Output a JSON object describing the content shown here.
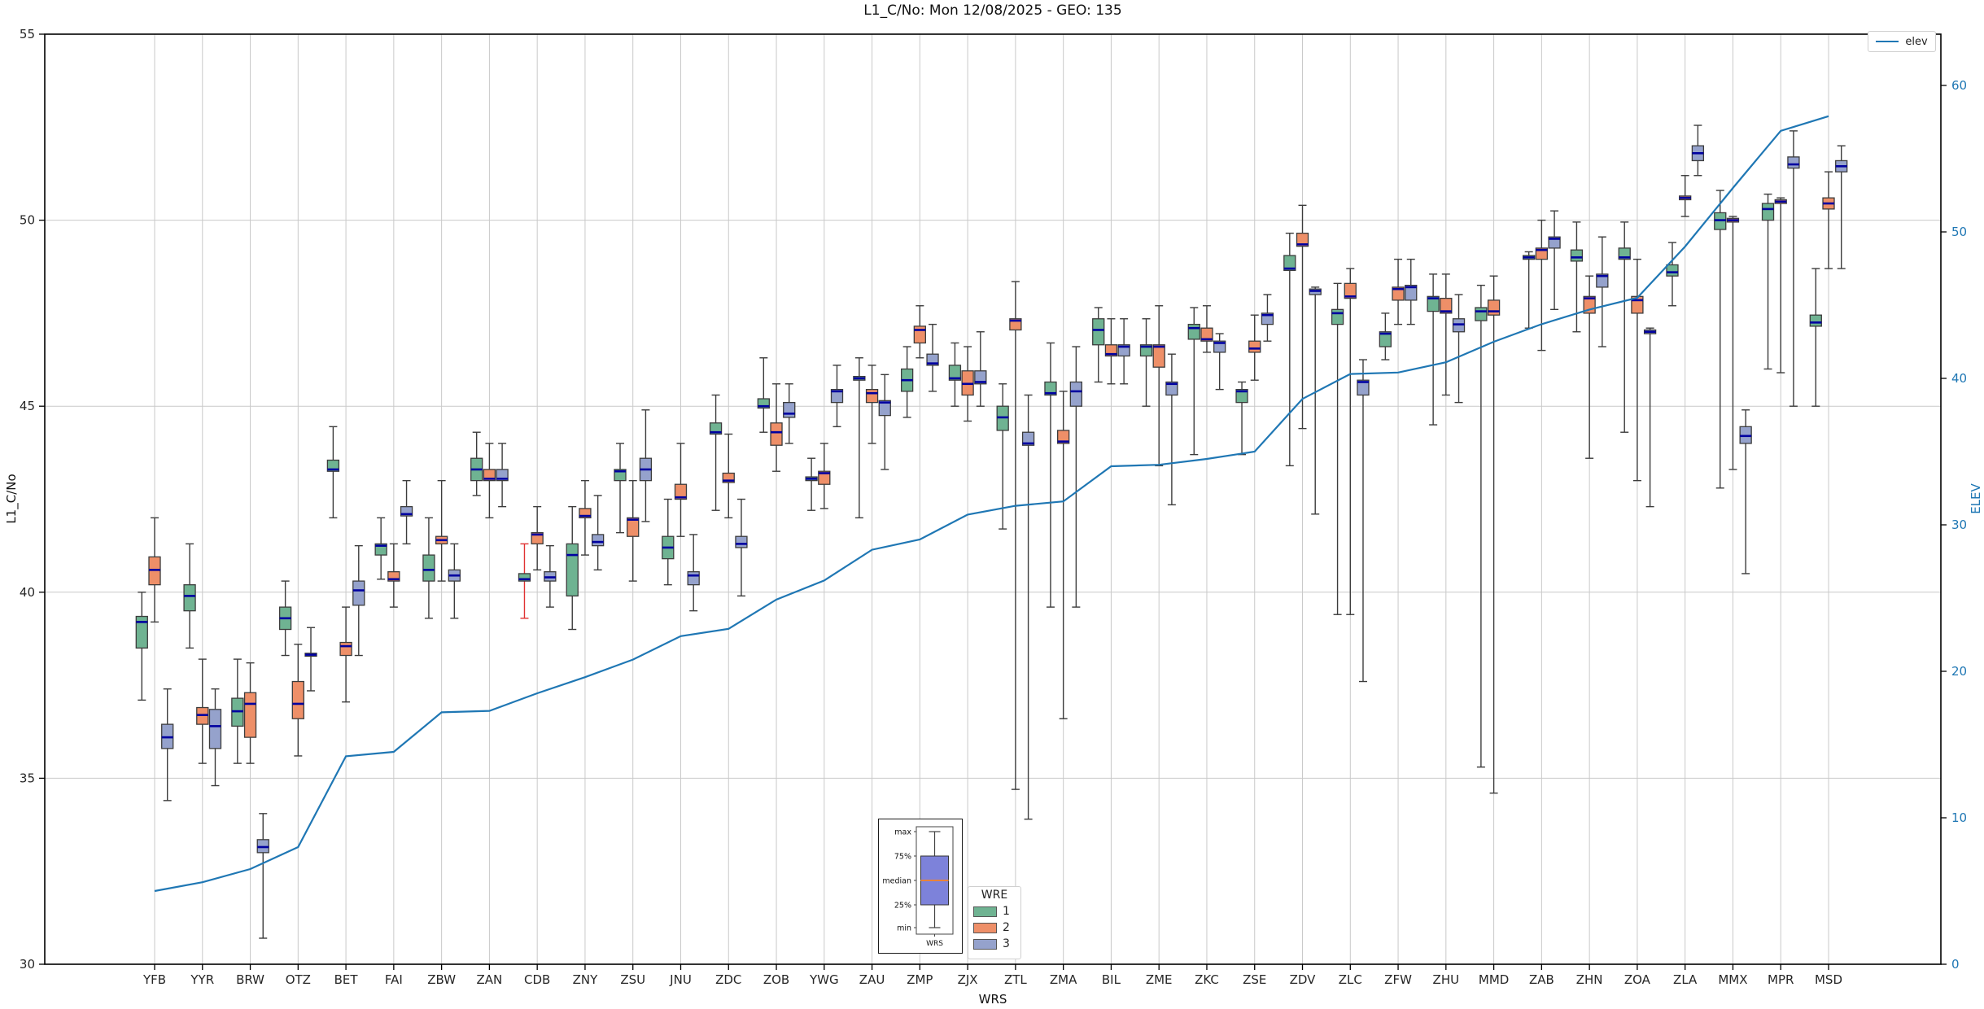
{
  "title": "L1_C/No: Mon 12/08/2025 - GEO: 135",
  "axes": {
    "left": {
      "label": "L1_C/No",
      "ticks": [
        30,
        35,
        40,
        45,
        50,
        55
      ],
      "color": "#262626"
    },
    "right": {
      "label": "ELEV",
      "ticks": [
        0,
        10,
        20,
        30,
        40,
        50,
        60
      ],
      "color": "#1f77b4"
    },
    "x": {
      "label": "WRS"
    }
  },
  "legend_elev": {
    "label": "elev",
    "color": "#1f77b4"
  },
  "legend_wre": {
    "title": "WRE",
    "entries": [
      {
        "label": "1",
        "color": "#6fb392"
      },
      {
        "label": "2",
        "color": "#ee8f68"
      },
      {
        "label": "3",
        "color": "#95a2cc"
      }
    ]
  },
  "inset": {
    "labels": {
      "max": "max",
      "p75": "75%",
      "median": "median",
      "p25": "25%",
      "min": "min",
      "xlabel": "WRS"
    },
    "box_color": "#7d82da",
    "median_color": "#e8833c"
  },
  "chart_data": {
    "type": "boxplot+line",
    "title": "L1_C/No: Mon 12/08/2025 - GEO: 135",
    "xlabel": "WRS",
    "ylabel_left": "L1_C/No",
    "ylabel_right": "ELEV",
    "ylim_left": [
      30,
      55
    ],
    "ylim_right": [
      0,
      63.5
    ],
    "grid": true,
    "categories": [
      "YFB",
      "YYR",
      "BRW",
      "OTZ",
      "BET",
      "FAI",
      "ZBW",
      "ZAN",
      "CDB",
      "ZNY",
      "ZSU",
      "JNU",
      "ZDC",
      "ZOB",
      "YWG",
      "ZAU",
      "ZMP",
      "ZJX",
      "ZTL",
      "ZMA",
      "BIL",
      "ZME",
      "ZKC",
      "ZSE",
      "ZDV",
      "ZLC",
      "ZFW",
      "ZHU",
      "MMD",
      "ZAB",
      "ZHN",
      "ZOA",
      "ZLA",
      "MMX",
      "MPR",
      "MSD"
    ],
    "box_value_order": [
      "whisker_low",
      "q1",
      "median",
      "q3",
      "whisker_high"
    ],
    "series": [
      {
        "name": "1",
        "color": "#6fb392",
        "values": [
          [
            37.1,
            38.5,
            39.2,
            39.35,
            40.0
          ],
          [
            38.5,
            39.5,
            39.9,
            40.2,
            41.3
          ],
          [
            35.4,
            36.4,
            36.8,
            37.15,
            38.2
          ],
          [
            38.3,
            39.0,
            39.3,
            39.6,
            40.3
          ],
          [
            42.0,
            43.25,
            43.3,
            43.55,
            44.45
          ],
          [
            40.35,
            41.0,
            41.25,
            41.3,
            42.0
          ],
          [
            39.3,
            40.3,
            40.6,
            41.0,
            42.0
          ],
          [
            42.6,
            43.0,
            43.3,
            43.6,
            44.3
          ],
          [
            39.3,
            40.3,
            40.35,
            40.5,
            41.3
          ],
          [
            39.0,
            39.9,
            41.0,
            41.3,
            42.3
          ],
          [
            41.6,
            43.0,
            43.25,
            43.3,
            44.0
          ],
          [
            40.2,
            40.9,
            41.2,
            41.5,
            42.5
          ],
          [
            42.2,
            44.25,
            44.3,
            44.55,
            45.3
          ],
          [
            44.3,
            44.95,
            45.0,
            45.2,
            46.3
          ],
          [
            42.2,
            43.0,
            43.05,
            43.1,
            43.6
          ],
          [
            42.0,
            45.7,
            45.75,
            45.8,
            46.3
          ],
          [
            44.7,
            45.4,
            45.7,
            46.0,
            46.6
          ],
          [
            45.0,
            45.7,
            45.75,
            46.1,
            46.7
          ],
          [
            41.7,
            44.35,
            44.7,
            45.0,
            45.6
          ],
          [
            39.6,
            45.3,
            45.35,
            45.65,
            46.7
          ],
          [
            45.65,
            46.65,
            47.05,
            47.35,
            47.65
          ],
          [
            45.0,
            46.35,
            46.6,
            46.65,
            47.35
          ],
          [
            43.7,
            46.8,
            47.1,
            47.2,
            47.65
          ],
          [
            43.7,
            45.1,
            45.4,
            45.45,
            45.65
          ],
          [
            43.4,
            48.65,
            48.7,
            49.05,
            49.65
          ],
          [
            39.4,
            47.2,
            47.5,
            47.6,
            48.3
          ],
          [
            46.25,
            46.6,
            46.95,
            47.0,
            47.5
          ],
          [
            44.5,
            47.55,
            47.9,
            47.95,
            48.55
          ],
          [
            35.3,
            47.3,
            47.55,
            47.65,
            48.25
          ],
          [
            47.1,
            48.95,
            49.0,
            49.05,
            49.15
          ],
          [
            47.0,
            48.9,
            49.0,
            49.2,
            49.95
          ],
          [
            44.3,
            48.95,
            49.0,
            49.25,
            49.95
          ],
          [
            47.7,
            48.5,
            48.6,
            48.8,
            49.4
          ],
          [
            42.8,
            49.75,
            50.0,
            50.2,
            50.8
          ],
          [
            46.0,
            50.0,
            50.3,
            50.45,
            50.7
          ],
          [
            45.0,
            47.15,
            47.25,
            47.45,
            48.7
          ]
        ]
      },
      {
        "name": "2",
        "color": "#ee8f68",
        "values": [
          [
            39.2,
            40.2,
            40.6,
            40.95,
            42.0
          ],
          [
            35.4,
            36.45,
            36.7,
            36.9,
            38.2
          ],
          [
            35.4,
            36.1,
            37.0,
            37.3,
            38.1
          ],
          [
            35.6,
            36.6,
            37.0,
            37.6,
            38.6
          ],
          [
            37.05,
            38.3,
            38.55,
            38.65,
            39.6
          ],
          [
            39.6,
            40.3,
            40.35,
            40.55,
            41.3
          ],
          [
            40.3,
            41.3,
            41.4,
            41.5,
            43.0
          ],
          [
            42.0,
            43.0,
            43.05,
            43.3,
            44.0
          ],
          [
            40.6,
            41.3,
            41.55,
            41.6,
            42.3
          ],
          [
            41.0,
            42.0,
            42.05,
            42.25,
            43.0
          ],
          [
            40.3,
            41.5,
            41.95,
            42.0,
            43.0
          ],
          [
            41.5,
            42.5,
            42.55,
            42.9,
            44.0
          ],
          [
            42.0,
            42.95,
            43.0,
            43.2,
            44.25
          ],
          [
            43.25,
            43.95,
            44.3,
            44.55,
            45.6
          ],
          [
            42.25,
            42.9,
            43.2,
            43.25,
            44.0
          ],
          [
            44.0,
            45.1,
            45.35,
            45.45,
            46.1
          ],
          [
            46.3,
            46.7,
            47.05,
            47.15,
            47.7
          ],
          [
            44.6,
            45.3,
            45.6,
            45.95,
            46.6
          ],
          [
            34.7,
            47.05,
            47.3,
            47.35,
            48.35
          ],
          [
            36.6,
            44.0,
            44.05,
            44.35,
            45.4
          ],
          [
            45.6,
            46.35,
            46.4,
            46.65,
            47.35
          ],
          [
            43.4,
            46.05,
            46.6,
            46.65,
            47.7
          ],
          [
            46.45,
            46.75,
            46.8,
            47.1,
            47.7
          ],
          [
            45.7,
            46.45,
            46.55,
            46.75,
            47.45
          ],
          [
            44.4,
            49.3,
            49.35,
            49.65,
            50.4
          ],
          [
            39.4,
            47.9,
            47.95,
            48.3,
            48.7
          ],
          [
            47.2,
            47.85,
            48.15,
            48.2,
            48.95
          ],
          [
            45.3,
            47.5,
            47.55,
            47.9,
            48.55
          ],
          [
            34.6,
            47.45,
            47.55,
            47.85,
            48.5
          ],
          [
            46.5,
            48.95,
            49.2,
            49.25,
            50.0
          ],
          [
            43.6,
            47.5,
            47.9,
            47.95,
            48.5
          ],
          [
            43.0,
            47.5,
            47.85,
            47.95,
            48.95
          ],
          [
            50.1,
            50.55,
            50.6,
            50.65,
            51.2
          ],
          [
            43.3,
            49.95,
            50.0,
            50.05,
            50.1
          ],
          [
            45.9,
            50.45,
            50.5,
            50.55,
            50.6
          ],
          [
            48.7,
            50.3,
            50.45,
            50.6,
            51.3
          ]
        ]
      },
      {
        "name": "3",
        "color": "#95a2cc",
        "values": [
          [
            34.4,
            35.8,
            36.1,
            36.45,
            37.4
          ],
          [
            34.8,
            35.8,
            36.4,
            36.85,
            37.4
          ],
          [
            30.7,
            33.0,
            33.15,
            33.35,
            34.05
          ],
          [
            37.35,
            38.28,
            38.32,
            38.36,
            39.05
          ],
          [
            38.3,
            39.65,
            40.05,
            40.3,
            41.25
          ],
          [
            41.3,
            42.05,
            42.1,
            42.3,
            43.0
          ],
          [
            39.3,
            40.3,
            40.45,
            40.6,
            41.3
          ],
          [
            42.3,
            43.0,
            43.05,
            43.3,
            44.0
          ],
          [
            39.6,
            40.3,
            40.4,
            40.55,
            41.25
          ],
          [
            40.6,
            41.25,
            41.35,
            41.55,
            42.6
          ],
          [
            41.9,
            43.0,
            43.3,
            43.6,
            44.9
          ],
          [
            39.5,
            40.2,
            40.45,
            40.55,
            41.55
          ],
          [
            39.9,
            41.2,
            41.3,
            41.5,
            42.5
          ],
          [
            44.0,
            44.7,
            44.8,
            45.1,
            45.6
          ],
          [
            44.45,
            45.1,
            45.4,
            45.45,
            46.1
          ],
          [
            43.3,
            44.75,
            45.1,
            45.15,
            45.85
          ],
          [
            45.4,
            46.1,
            46.15,
            46.4,
            47.2
          ],
          [
            45.0,
            45.6,
            45.65,
            45.95,
            47.0
          ],
          [
            33.9,
            43.95,
            44.0,
            44.3,
            45.3
          ],
          [
            39.6,
            45.0,
            45.4,
            45.65,
            46.6
          ],
          [
            45.6,
            46.35,
            46.6,
            46.65,
            47.35
          ],
          [
            42.35,
            45.3,
            45.6,
            45.65,
            46.4
          ],
          [
            45.45,
            46.45,
            46.7,
            46.75,
            46.95
          ],
          [
            46.75,
            47.2,
            47.45,
            47.5,
            48.0
          ],
          [
            42.1,
            48.0,
            48.1,
            48.15,
            48.2
          ],
          [
            37.6,
            45.3,
            45.65,
            45.7,
            46.25
          ],
          [
            47.2,
            47.85,
            48.2,
            48.25,
            48.95
          ],
          [
            45.1,
            47.0,
            47.2,
            47.35,
            48.0
          ],
          null,
          [
            47.6,
            49.25,
            49.5,
            49.55,
            50.25
          ],
          [
            46.6,
            48.2,
            48.5,
            48.55,
            49.55
          ],
          [
            42.3,
            46.95,
            47.0,
            47.05,
            47.1
          ],
          [
            51.2,
            51.6,
            51.8,
            52.0,
            52.55
          ],
          [
            40.5,
            44.0,
            44.2,
            44.45,
            44.9
          ],
          [
            45.0,
            51.4,
            51.5,
            51.7,
            52.4
          ],
          [
            48.7,
            51.3,
            51.45,
            51.6,
            52.0
          ]
        ]
      }
    ],
    "red_whisker": {
      "category": "CDB",
      "series": "1",
      "color": "#e03232"
    },
    "line": {
      "name": "elev",
      "axis": "right",
      "color": "#1f77b4",
      "values": [
        5.0,
        5.6,
        6.5,
        8.0,
        14.2,
        14.5,
        17.2,
        17.3,
        18.5,
        19.6,
        20.8,
        22.4,
        22.9,
        24.9,
        26.2,
        28.3,
        29.0,
        30.7,
        31.3,
        31.6,
        34.0,
        34.1,
        34.5,
        35.0,
        38.6,
        40.3,
        40.4,
        41.1,
        42.5,
        43.7,
        44.7,
        45.5,
        49.0,
        53.0,
        56.9,
        57.9
      ]
    },
    "legend_title": "WRE",
    "legend_entries": [
      "1",
      "2",
      "3"
    ],
    "line_legend": "elev",
    "median_color": "#0000a0",
    "box_edge_color": "#3c3c3c",
    "grid_color": "#c9c9c9"
  }
}
